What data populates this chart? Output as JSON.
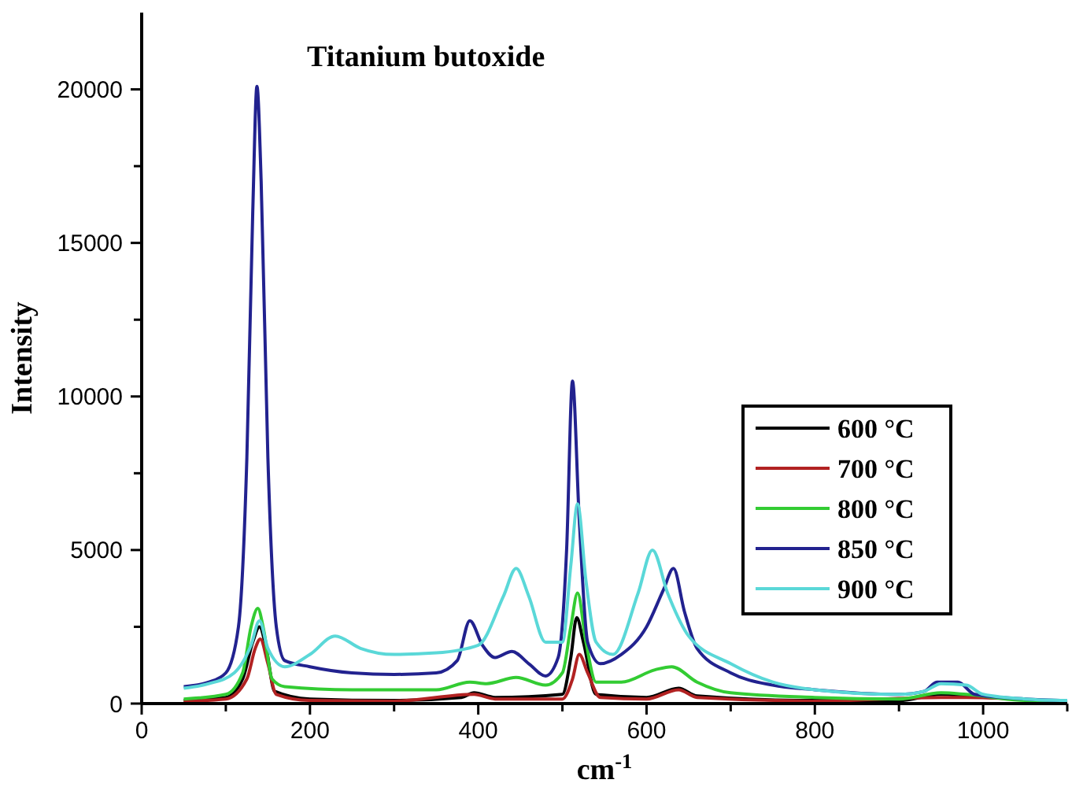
{
  "chart_data": {
    "type": "line",
    "title": "Titanium butoxide",
    "xlabel": "cm$^{-1}$",
    "ylabel": "Intensity",
    "xlim": [
      0,
      1100
    ],
    "ylim": [
      0,
      22500
    ],
    "xticks": [
      0,
      {
        "value": 100,
        "label": null
      },
      200,
      {
        "value": 300,
        "label": null
      },
      400,
      {
        "value": 500,
        "label": null
      },
      600,
      {
        "value": 700,
        "label": null
      },
      800,
      {
        "value": 900,
        "label": null
      },
      1000,
      {
        "value": 1100,
        "label": null
      }
    ],
    "yticks": [
      0,
      {
        "value": 2500,
        "label": null
      },
      5000,
      {
        "value": 7500,
        "label": null
      },
      10000,
      {
        "value": 12500,
        "label": null
      },
      15000,
      {
        "value": 17500,
        "label": null
      },
      20000
    ],
    "legend": "right",
    "grid": false,
    "line_style": "solid",
    "series": [
      {
        "name": "600 °C",
        "color": "#000000",
        "x": [
          50,
          100,
          120,
          132,
          140,
          148,
          158,
          200,
          300,
          380,
          395,
          420,
          500,
          510,
          517,
          525,
          540,
          600,
          638,
          660,
          800,
          900,
          950,
          980,
          1100
        ],
        "values": [
          100,
          200,
          800,
          2000,
          2500,
          1800,
          400,
          150,
          100,
          200,
          350,
          200,
          300,
          1500,
          2800,
          2000,
          300,
          200,
          500,
          250,
          100,
          100,
          300,
          250,
          50
        ]
      },
      {
        "name": "700 °C",
        "color": "#b22222",
        "x": [
          50,
          100,
          125,
          135,
          141,
          150,
          160,
          200,
          300,
          395,
          420,
          500,
          512,
          520,
          530,
          545,
          600,
          638,
          660,
          800,
          950,
          980,
          1100
        ],
        "values": [
          80,
          150,
          800,
          1800,
          2100,
          1300,
          300,
          100,
          80,
          300,
          150,
          150,
          800,
          1600,
          1000,
          200,
          150,
          450,
          200,
          80,
          200,
          200,
          40
        ]
      },
      {
        "name": "800 °C",
        "color": "#33cc33",
        "x": [
          50,
          100,
          120,
          130,
          138,
          145,
          155,
          170,
          250,
          350,
          390,
          410,
          445,
          480,
          500,
          510,
          518,
          528,
          540,
          570,
          610,
          630,
          660,
          700,
          800,
          900,
          950,
          980,
          1050,
          1100
        ],
        "values": [
          150,
          300,
          1000,
          2500,
          3100,
          2400,
          800,
          550,
          450,
          450,
          700,
          650,
          850,
          600,
          1000,
          2500,
          3600,
          2000,
          700,
          700,
          1100,
          1200,
          700,
          350,
          200,
          150,
          350,
          300,
          100,
          80
        ]
      },
      {
        "name": "850 °C",
        "color": "#22228f",
        "x": [
          50,
          80,
          100,
          115,
          125,
          132,
          137,
          142,
          150,
          160,
          170,
          200,
          250,
          300,
          350,
          375,
          390,
          405,
          420,
          440,
          460,
          480,
          495,
          505,
          512,
          520,
          530,
          545,
          570,
          600,
          620,
          632,
          645,
          660,
          700,
          750,
          800,
          900,
          930,
          945,
          970,
          990,
          1050,
          1100
        ],
        "values": [
          550,
          700,
          1000,
          2500,
          8000,
          16000,
          20100,
          17000,
          8000,
          2500,
          1400,
          1200,
          1000,
          950,
          1000,
          1400,
          2700,
          1900,
          1500,
          1700,
          1300,
          900,
          1500,
          5000,
          10500,
          6000,
          2000,
          1300,
          1600,
          2500,
          3700,
          4400,
          3000,
          1800,
          1000,
          600,
          450,
          300,
          400,
          700,
          700,
          300,
          150,
          100
        ]
      },
      {
        "name": "900 °C",
        "color": "#5ad8d8",
        "x": [
          50,
          80,
          110,
          130,
          140,
          150,
          170,
          200,
          230,
          260,
          300,
          350,
          400,
          430,
          445,
          460,
          480,
          500,
          510,
          518,
          528,
          540,
          560,
          590,
          607,
          625,
          650,
          700,
          750,
          800,
          900,
          930,
          950,
          980,
          1000,
          1050,
          1100
        ],
        "values": [
          500,
          650,
          1000,
          1900,
          2700,
          1800,
          1200,
          1600,
          2200,
          1800,
          1600,
          1650,
          1900,
          3500,
          4400,
          3500,
          2000,
          2000,
          4500,
          6500,
          4000,
          2000,
          1600,
          3600,
          5000,
          3600,
          2200,
          1300,
          700,
          450,
          300,
          400,
          650,
          600,
          300,
          150,
          100
        ]
      }
    ]
  }
}
